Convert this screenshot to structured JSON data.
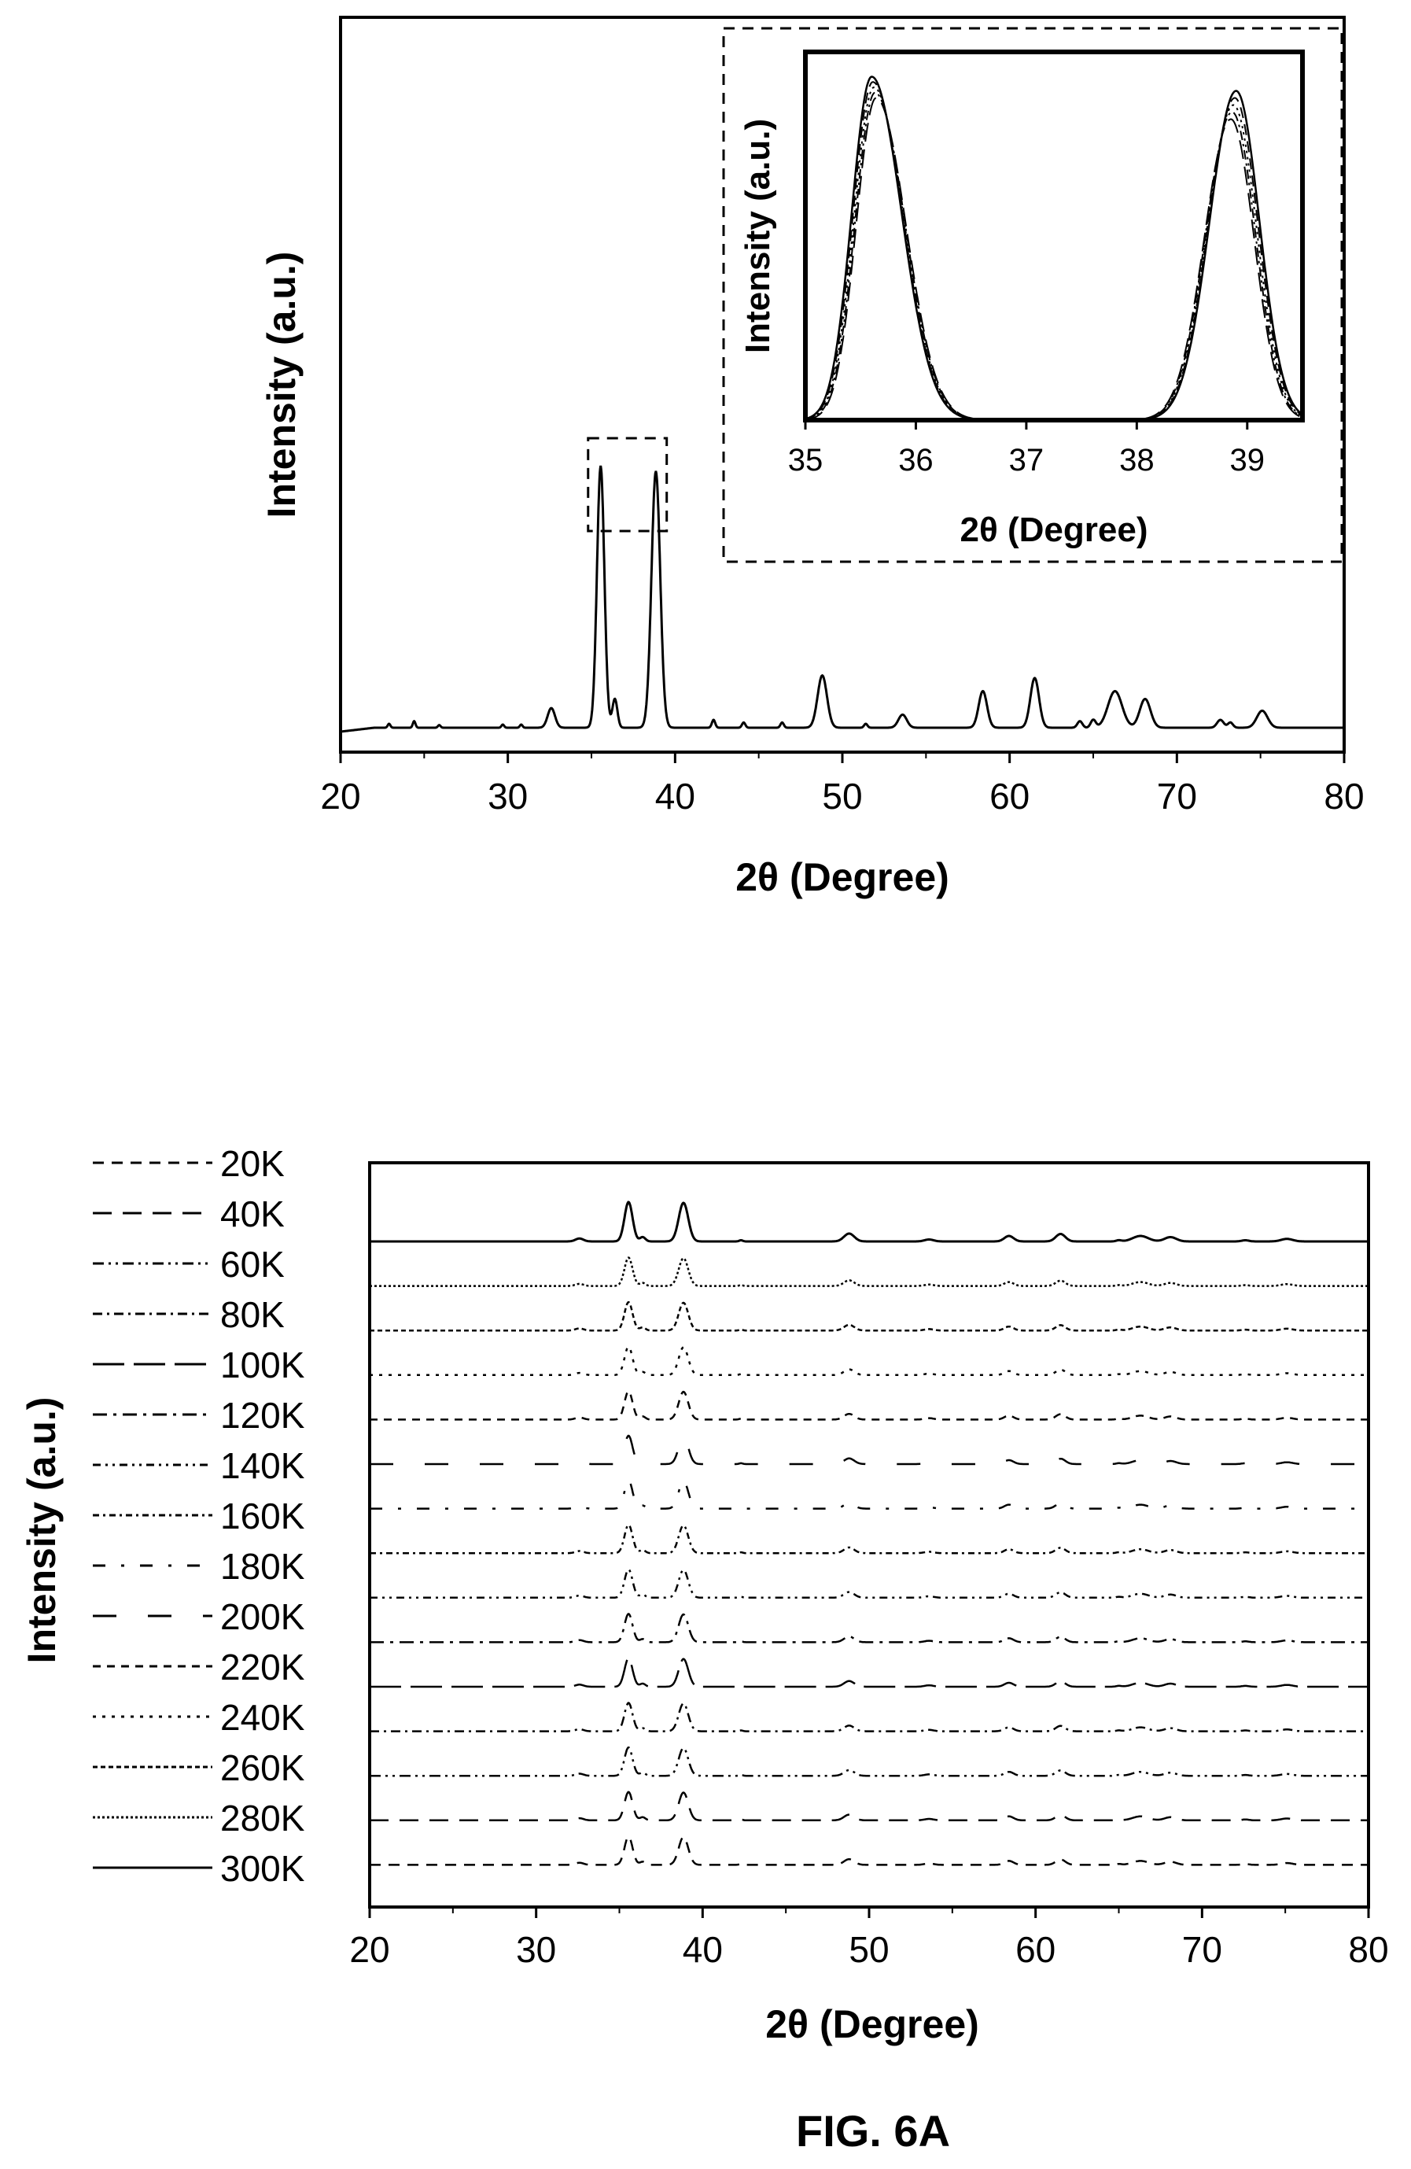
{
  "figure_caption": "FIG. 6A",
  "chart_data": [
    {
      "type": "line",
      "xlabel": "2θ (Degree)",
      "ylabel": "Intensity (a.u.)",
      "xlim": [
        20,
        80
      ],
      "xticks": [
        "20",
        "30",
        "40",
        "50",
        "60",
        "70",
        "80"
      ],
      "peaks": [
        {
          "x": 22.9,
          "h": 0.015,
          "w": 0.08
        },
        {
          "x": 24.4,
          "h": 0.025,
          "w": 0.08
        },
        {
          "x": 25.9,
          "h": 0.01,
          "w": 0.08
        },
        {
          "x": 29.7,
          "h": 0.012,
          "w": 0.08
        },
        {
          "x": 30.8,
          "h": 0.012,
          "w": 0.08
        },
        {
          "x": 32.6,
          "h": 0.075,
          "w": 0.22
        },
        {
          "x": 35.55,
          "h": 1.0,
          "w": 0.22
        },
        {
          "x": 36.4,
          "h": 0.11,
          "w": 0.15
        },
        {
          "x": 38.85,
          "h": 0.98,
          "w": 0.26
        },
        {
          "x": 42.3,
          "h": 0.03,
          "w": 0.1
        },
        {
          "x": 44.1,
          "h": 0.02,
          "w": 0.1
        },
        {
          "x": 46.4,
          "h": 0.02,
          "w": 0.1
        },
        {
          "x": 48.8,
          "h": 0.2,
          "w": 0.28
        },
        {
          "x": 51.4,
          "h": 0.015,
          "w": 0.1
        },
        {
          "x": 53.6,
          "h": 0.05,
          "w": 0.25
        },
        {
          "x": 58.4,
          "h": 0.14,
          "w": 0.25
        },
        {
          "x": 61.5,
          "h": 0.19,
          "w": 0.26
        },
        {
          "x": 64.2,
          "h": 0.025,
          "w": 0.15
        },
        {
          "x": 65.0,
          "h": 0.03,
          "w": 0.15
        },
        {
          "x": 66.3,
          "h": 0.14,
          "w": 0.42
        },
        {
          "x": 68.1,
          "h": 0.11,
          "w": 0.32
        },
        {
          "x": 72.6,
          "h": 0.03,
          "w": 0.2
        },
        {
          "x": 73.2,
          "h": 0.02,
          "w": 0.15
        },
        {
          "x": 75.1,
          "h": 0.065,
          "w": 0.32
        }
      ],
      "zoom_box": {
        "x": [
          34.8,
          39.5
        ]
      },
      "inset": {
        "type": "line",
        "xlabel": "2θ (Degree)",
        "ylabel": "Intensity (a.u.)",
        "xlim": [
          35,
          39.5
        ],
        "xticks": [
          "35",
          "36",
          "37",
          "38",
          "39"
        ],
        "peak_centers": [
          35.6,
          38.9
        ],
        "styles": [
          "solid",
          "dashed",
          "dotted",
          "dashdot",
          "longdash"
        ]
      }
    },
    {
      "type": "line",
      "xlabel": "2θ (Degree)",
      "ylabel": "Intensity (a.u.)",
      "xlim": [
        20,
        80
      ],
      "xticks": [
        "20",
        "30",
        "40",
        "50",
        "60",
        "70",
        "80"
      ],
      "series": [
        {
          "name": "20K",
          "dash": "14,10"
        },
        {
          "name": "40K",
          "dash": "24,14"
        },
        {
          "name": "60K",
          "dash": "14,6,3,6,3,6"
        },
        {
          "name": "80K",
          "dash": "12,6,3,6"
        },
        {
          "name": "100K",
          "dash": "40,12"
        },
        {
          "name": "120K",
          "dash": "18,8,4,8"
        },
        {
          "name": "140K",
          "dash": "10,6,3,6,3,6"
        },
        {
          "name": "160K",
          "dash": "8,5,3,5"
        },
        {
          "name": "180K",
          "dash": "16,20,4,20"
        },
        {
          "name": "200K",
          "dash": "30,40"
        },
        {
          "name": "220K",
          "dash": "10,8"
        },
        {
          "name": "240K",
          "dash": "4,8"
        },
        {
          "name": "260K",
          "dash": "6,4"
        },
        {
          "name": "280K",
          "dash": "3,3"
        },
        {
          "name": "300K",
          "dash": ""
        }
      ]
    }
  ]
}
